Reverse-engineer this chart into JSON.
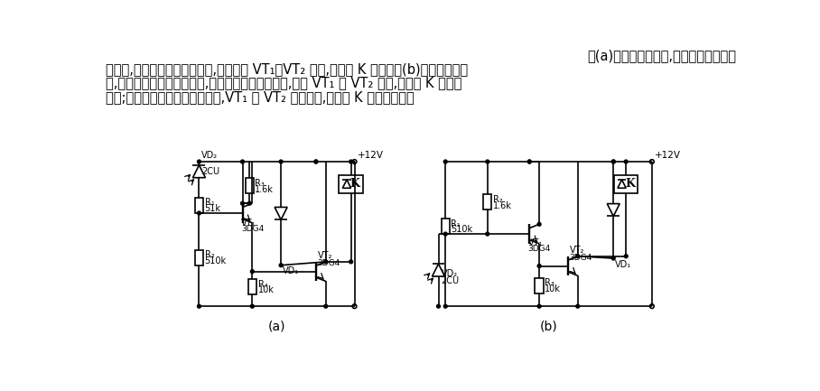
{
  "text_line1": "图(a)是亮通光控电路,当有光照射发光二",
  "text_line2": "极管时,光敏二极管的阻值减小,使三极管 VT₁、VT₂ 导通,继电器 K 吸合。图(b)是暗通光控电",
  "text_line3": "路,当有光照射光敏二极管时,光敏二极管的阻值减小,且使 VT₁ 和 VT₂ 截止,继电器 K 则不会",
  "text_line4": "工作;只有光敏二极管无光照射时,VT₁ 和 VT₂ 才会导通,继电器 K 才会被吸合。",
  "label_a": "(a)",
  "label_b": "(b)",
  "bg_color": "#ffffff"
}
